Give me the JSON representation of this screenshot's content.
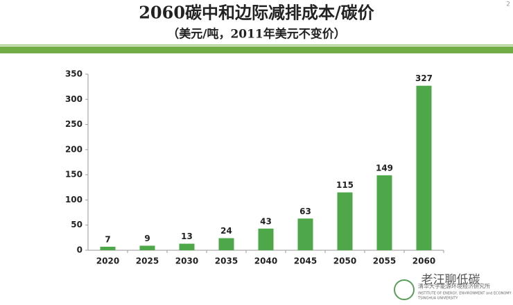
{
  "chart_data": {
    "type": "bar",
    "title": "2060碳中和边际减排成本/碳价",
    "subtitle": "（美元/吨，2011年美元不变价）",
    "page_number": "2",
    "categories": [
      "2020",
      "2025",
      "2030",
      "2035",
      "2040",
      "2045",
      "2050",
      "2055",
      "2060"
    ],
    "values": [
      7,
      9,
      13,
      24,
      43,
      63,
      115,
      149,
      327
    ],
    "color": "#4ea84a",
    "ylim": [
      0,
      350
    ],
    "yticks": [
      0,
      50,
      100,
      150,
      200,
      250,
      300,
      350
    ],
    "grid": false,
    "watermark": "老汪聊低碳",
    "institute": [
      "清华大学能源环境经济研究所",
      "INSTITUTE OF ENERGY, ENVIRONMENT and ECONOMY",
      "TSINGHUA UNIVERSITY"
    ]
  }
}
